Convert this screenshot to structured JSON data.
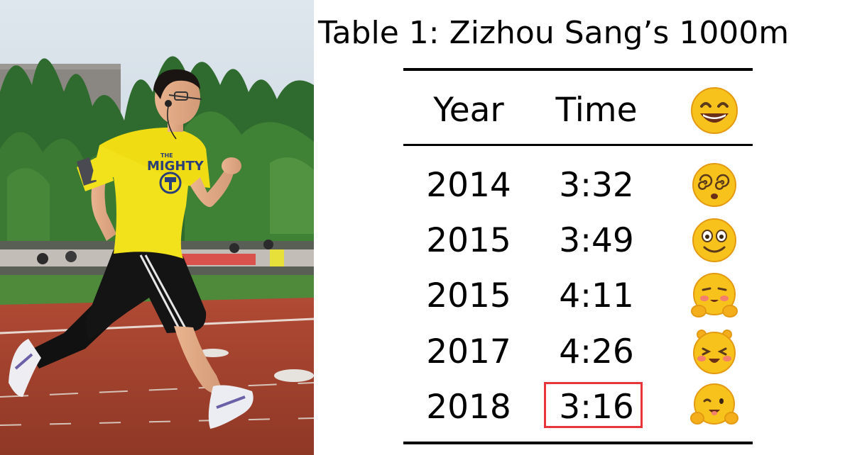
{
  "caption": "Table 1: Zizhou Sang’s 1000m",
  "photo": {
    "shirt_text_small": "THE",
    "shirt_text": "MIGHTY"
  },
  "table": {
    "headers": {
      "year": "Year",
      "time": "Time",
      "face_icon": "grinning-face-icon"
    },
    "rows": [
      {
        "year": "2014",
        "time": "3:32",
        "face_icon": "dizzy-eyes-face-icon"
      },
      {
        "year": "2015",
        "time": "3:49",
        "face_icon": "smiling-face-icon"
      },
      {
        "year": "2015",
        "time": "4:11",
        "face_icon": "giggling-face-icon"
      },
      {
        "year": "2017",
        "time": "4:26",
        "face_icon": "laughing-face-icon"
      },
      {
        "year": "2018",
        "time": "3:16",
        "face_icon": "cheeky-face-icon",
        "highlighted": true
      }
    ]
  },
  "colors": {
    "highlight": "#e8353b",
    "rule": "#000000",
    "emoji_yellow": "#f7c21c",
    "shirt_yellow": "#f2e21b",
    "track": "#a5432f"
  }
}
